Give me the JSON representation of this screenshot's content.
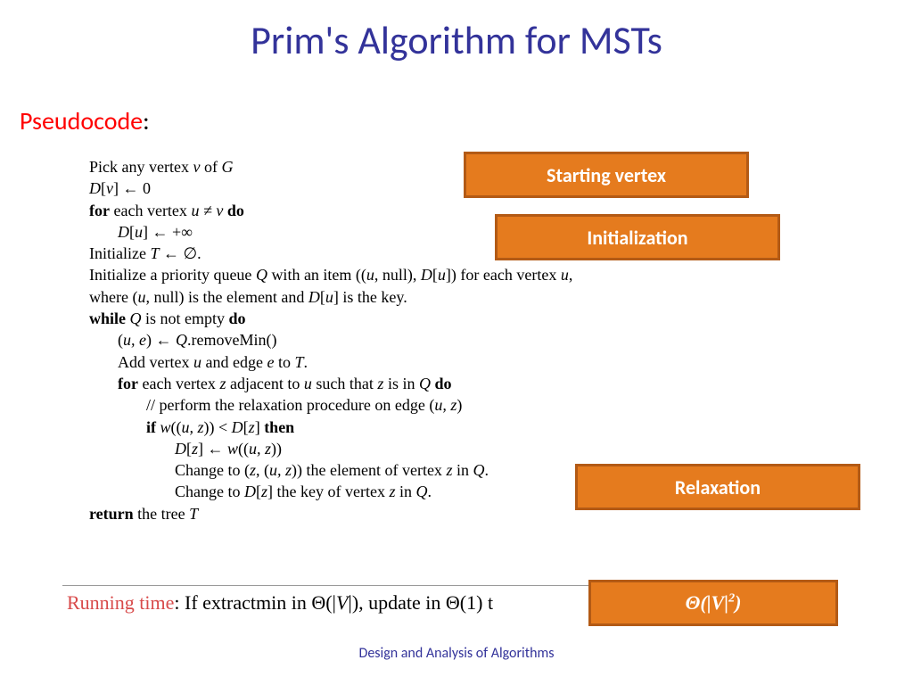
{
  "title": "Prim's Algorithm for MSTs",
  "subtitle": "Pseudocode",
  "pseudo": {
    "l1a": "Pick any vertex ",
    "l1b": "v",
    "l1c": " of ",
    "l1d": "G",
    "l2a": "D",
    "l2b": "[",
    "l2c": "v",
    "l2d": "] ← 0",
    "l3a": "for",
    "l3b": " each vertex ",
    "l3c": "u ≠ v",
    "l3d": " do",
    "l4a": "D",
    "l4b": "[",
    "l4c": "u",
    "l4d": "] ← +∞",
    "l5a": "Initialize ",
    "l5b": "T",
    "l5c": " ← ∅.",
    "l6a": "Initialize a priority queue ",
    "l6b": "Q",
    "l6c": " with an item ((",
    "l6d": "u",
    "l6e": ", null), ",
    "l6f": "D",
    "l6g": "[",
    "l6h": "u",
    "l6i": "]) for each vertex ",
    "l6j": "u",
    "l6k": ",",
    "l7a": "where (",
    "l7b": "u",
    "l7c": ", null) is the element and ",
    "l7d": "D",
    "l7e": "[",
    "l7f": "u",
    "l7g": "] is the key.",
    "l8a": "while",
    "l8b": " Q",
    "l8c": " is not empty ",
    "l8d": "do",
    "l9a": "(",
    "l9b": "u, e",
    "l9c": ") ← ",
    "l9d": "Q",
    "l9e": ".removeMin()",
    "l10a": "Add vertex ",
    "l10b": "u",
    "l10c": " and edge ",
    "l10d": "e",
    "l10e": " to ",
    "l10f": "T",
    "l10g": ".",
    "l11a": "for",
    "l11b": "  each vertex ",
    "l11c": "z",
    "l11d": " adjacent to ",
    "l11e": "u",
    "l11f": " such that ",
    "l11g": "z",
    "l11h": " is in ",
    "l11i": "Q",
    "l11j": "  do",
    "l12a": "// perform the relaxation procedure on edge (",
    "l12b": "u, z",
    "l12c": ")",
    "l13a": "if",
    "l13b": " w",
    "l13c": "((",
    "l13d": "u, z",
    "l13e": ")) < ",
    "l13f": "D",
    "l13g": "[",
    "l13h": "z",
    "l13i": "] ",
    "l13j": "then",
    "l14a": "D",
    "l14b": "[",
    "l14c": "z",
    "l14d": "] ← ",
    "l14e": "w",
    "l14f": "((",
    "l14g": "u, z",
    "l14h": "))",
    "l15a": "Change to (",
    "l15b": "z",
    "l15c": ", (",
    "l15d": "u, z",
    "l15e": ")) the element of vertex ",
    "l15f": "z",
    "l15g": " in ",
    "l15h": "Q",
    "l15i": ".",
    "l16a": "Change to ",
    "l16b": "D",
    "l16c": "[",
    "l16d": "z",
    "l16e": "] the key of vertex ",
    "l16f": "z",
    "l16g": " in ",
    "l16h": "Q",
    "l16i": ".",
    "l17a": "return",
    "l17b": " the tree ",
    "l17c": "T"
  },
  "running": {
    "label": "Running time",
    "text1": ": If extractmin in Θ(|",
    "text2": "V",
    "text3": "|), update in Θ(1) t"
  },
  "boxes": {
    "b1": "Starting vertex",
    "b2": "Initialization",
    "b3": "Relaxation",
    "b4a": "Θ(|",
    "b4b": "V",
    "b4c": "|",
    "b4d": "2",
    "b4e": ")"
  },
  "footer": "Design and Analysis of Algorithms",
  "colors": {
    "title": "#33339a",
    "subtitle": "#ff0000",
    "box_bg": "#e57b1e",
    "box_border": "#b35a15",
    "running_label": "#d84a4a"
  }
}
